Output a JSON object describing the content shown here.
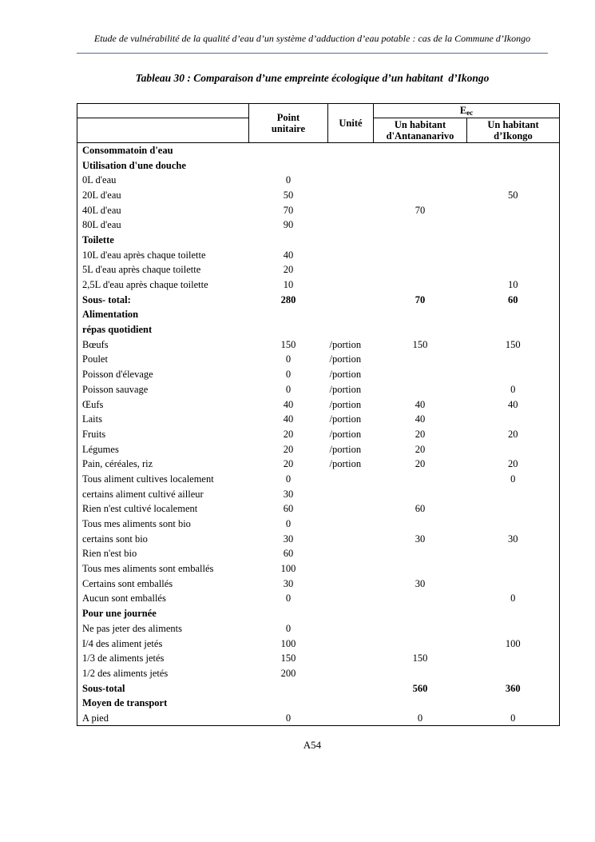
{
  "page": {
    "header_text": "Etude de vulnérabilité de la qualité d’eau d’un système d’adduction d’eau potable : cas de la Commune d’Ikongo",
    "rule_color": "#4a6e96",
    "footer_text": "A54"
  },
  "title": "Tableau 30 : Comparaison d’une empreinte écologique d’un habitant  d’Ikongo",
  "table": {
    "header": {
      "point": "Point\nunitaire",
      "unit": "Unité",
      "group_label": "E",
      "group_sub": "ec",
      "antananarivo": "Un habitant\nd'Antananarivo",
      "ikongo": "Un habitant\nd’Ikongo"
    },
    "rows": [
      {
        "label": "Consommatoin d'eau",
        "bold": true,
        "point": "",
        "unit": "",
        "antananarivo": "",
        "ikongo": ""
      },
      {
        "label": "Utilisation d'une douche",
        "bold": true,
        "point": "",
        "unit": "",
        "antananarivo": "",
        "ikongo": ""
      },
      {
        "label": "0L d'eau",
        "bold": false,
        "point": "0",
        "unit": "",
        "antananarivo": "",
        "ikongo": ""
      },
      {
        "label": "20L d'eau",
        "bold": false,
        "point": "50",
        "unit": "",
        "antananarivo": "",
        "ikongo": "50"
      },
      {
        "label": "40L d'eau",
        "bold": false,
        "point": "70",
        "unit": "",
        "antananarivo": "70",
        "ikongo": ""
      },
      {
        "label": "80L d'eau",
        "bold": false,
        "point": "90",
        "unit": "",
        "antananarivo": "",
        "ikongo": ""
      },
      {
        "label": "Toilette",
        "bold": true,
        "point": "",
        "unit": "",
        "antananarivo": "",
        "ikongo": ""
      },
      {
        "label": "10L d'eau après chaque toilette",
        "bold": false,
        "point": "40",
        "unit": "",
        "antananarivo": "",
        "ikongo": ""
      },
      {
        "label": "5L d'eau après chaque toilette",
        "bold": false,
        "point": "20",
        "unit": "",
        "antananarivo": "",
        "ikongo": ""
      },
      {
        "label": "2,5L d'eau après chaque toilette",
        "bold": false,
        "point": "10",
        "unit": "",
        "antananarivo": "",
        "ikongo": "10"
      },
      {
        "label": "Sous- total:",
        "bold": true,
        "point": "280",
        "unit": "",
        "antananarivo": "70",
        "ikongo": "60"
      },
      {
        "label": "Alimentation",
        "bold": true,
        "point": "",
        "unit": "",
        "antananarivo": "",
        "ikongo": ""
      },
      {
        "label": "répas quotidient",
        "bold": true,
        "point": "",
        "unit": "",
        "antananarivo": "",
        "ikongo": ""
      },
      {
        "label": "Bœufs",
        "bold": false,
        "point": "150",
        "unit": "/portion",
        "antananarivo": "150",
        "ikongo": "150"
      },
      {
        "label": "Poulet",
        "bold": false,
        "point": "0",
        "unit": "/portion",
        "antananarivo": "",
        "ikongo": ""
      },
      {
        "label": "Poisson d'élevage",
        "bold": false,
        "point": "0",
        "unit": "/portion",
        "antananarivo": "",
        "ikongo": ""
      },
      {
        "label": "Poisson sauvage",
        "bold": false,
        "point": "0",
        "unit": "/portion",
        "antananarivo": "",
        "ikongo": "0"
      },
      {
        "label": "Œufs",
        "bold": false,
        "point": "40",
        "unit": "/portion",
        "antananarivo": "40",
        "ikongo": "40"
      },
      {
        "label": "Laits",
        "bold": false,
        "point": "40",
        "unit": "/portion",
        "antananarivo": "40",
        "ikongo": ""
      },
      {
        "label": "Fruits",
        "bold": false,
        "point": "20",
        "unit": "/portion",
        "antananarivo": "20",
        "ikongo": "20"
      },
      {
        "label": "Légumes",
        "bold": false,
        "point": "20",
        "unit": "/portion",
        "antananarivo": "20",
        "ikongo": ""
      },
      {
        "label": "Pain, céréales, riz",
        "bold": false,
        "point": "20",
        "unit": "/portion",
        "antananarivo": "20",
        "ikongo": "20"
      },
      {
        "label": "Tous aliment cultives localement",
        "bold": false,
        "point": "0",
        "unit": "",
        "antananarivo": "",
        "ikongo": "0"
      },
      {
        "label": "certains aliment cultivé ailleur",
        "bold": false,
        "point": "30",
        "unit": "",
        "antananarivo": "",
        "ikongo": ""
      },
      {
        "label": "Rien n'est cultivé localement",
        "bold": false,
        "point": "60",
        "unit": "",
        "antananarivo": "60",
        "ikongo": ""
      },
      {
        "label": "Tous mes aliments sont bio",
        "bold": false,
        "point": "0",
        "unit": "",
        "antananarivo": "",
        "ikongo": ""
      },
      {
        "label": "certains sont bio",
        "bold": false,
        "point": "30",
        "unit": "",
        "antananarivo": "30",
        "ikongo": "30"
      },
      {
        "label": "Rien n'est bio",
        "bold": false,
        "point": "60",
        "unit": "",
        "antananarivo": "",
        "ikongo": ""
      },
      {
        "label": "Tous mes aliments sont emballés",
        "bold": false,
        "point": "100",
        "unit": "",
        "antananarivo": "",
        "ikongo": ""
      },
      {
        "label": "Certains sont emballés",
        "bold": false,
        "point": "30",
        "unit": "",
        "antananarivo": "30",
        "ikongo": ""
      },
      {
        "label": "Aucun sont emballés",
        "bold": false,
        "point": "0",
        "unit": "",
        "antananarivo": "",
        "ikongo": "0"
      },
      {
        "label": "Pour une journée",
        "bold": true,
        "point": "",
        "unit": "",
        "antananarivo": "",
        "ikongo": ""
      },
      {
        "label": "Ne pas jeter des aliments",
        "bold": false,
        "point": "0",
        "unit": "",
        "antananarivo": "",
        "ikongo": ""
      },
      {
        "label": "I/4 des aliment jetés",
        "bold": false,
        "point": "100",
        "unit": "",
        "antananarivo": "",
        "ikongo": "100"
      },
      {
        "label": "1/3 de aliments jetés",
        "bold": false,
        "point": "150",
        "unit": "",
        "antananarivo": "150",
        "ikongo": ""
      },
      {
        "label": "1/2 des aliments jetés",
        "bold": false,
        "point": "200",
        "unit": "",
        "antananarivo": "",
        "ikongo": ""
      },
      {
        "label": "Sous-total",
        "bold": true,
        "point": "",
        "unit": "",
        "antananarivo": "560",
        "ikongo": "360"
      },
      {
        "label": "Moyen de transport",
        "bold": true,
        "point": "",
        "unit": "",
        "antananarivo": "",
        "ikongo": ""
      },
      {
        "label": "A pied",
        "bold": false,
        "point": "0",
        "unit": "",
        "antananarivo": "0",
        "ikongo": "0"
      }
    ]
  }
}
